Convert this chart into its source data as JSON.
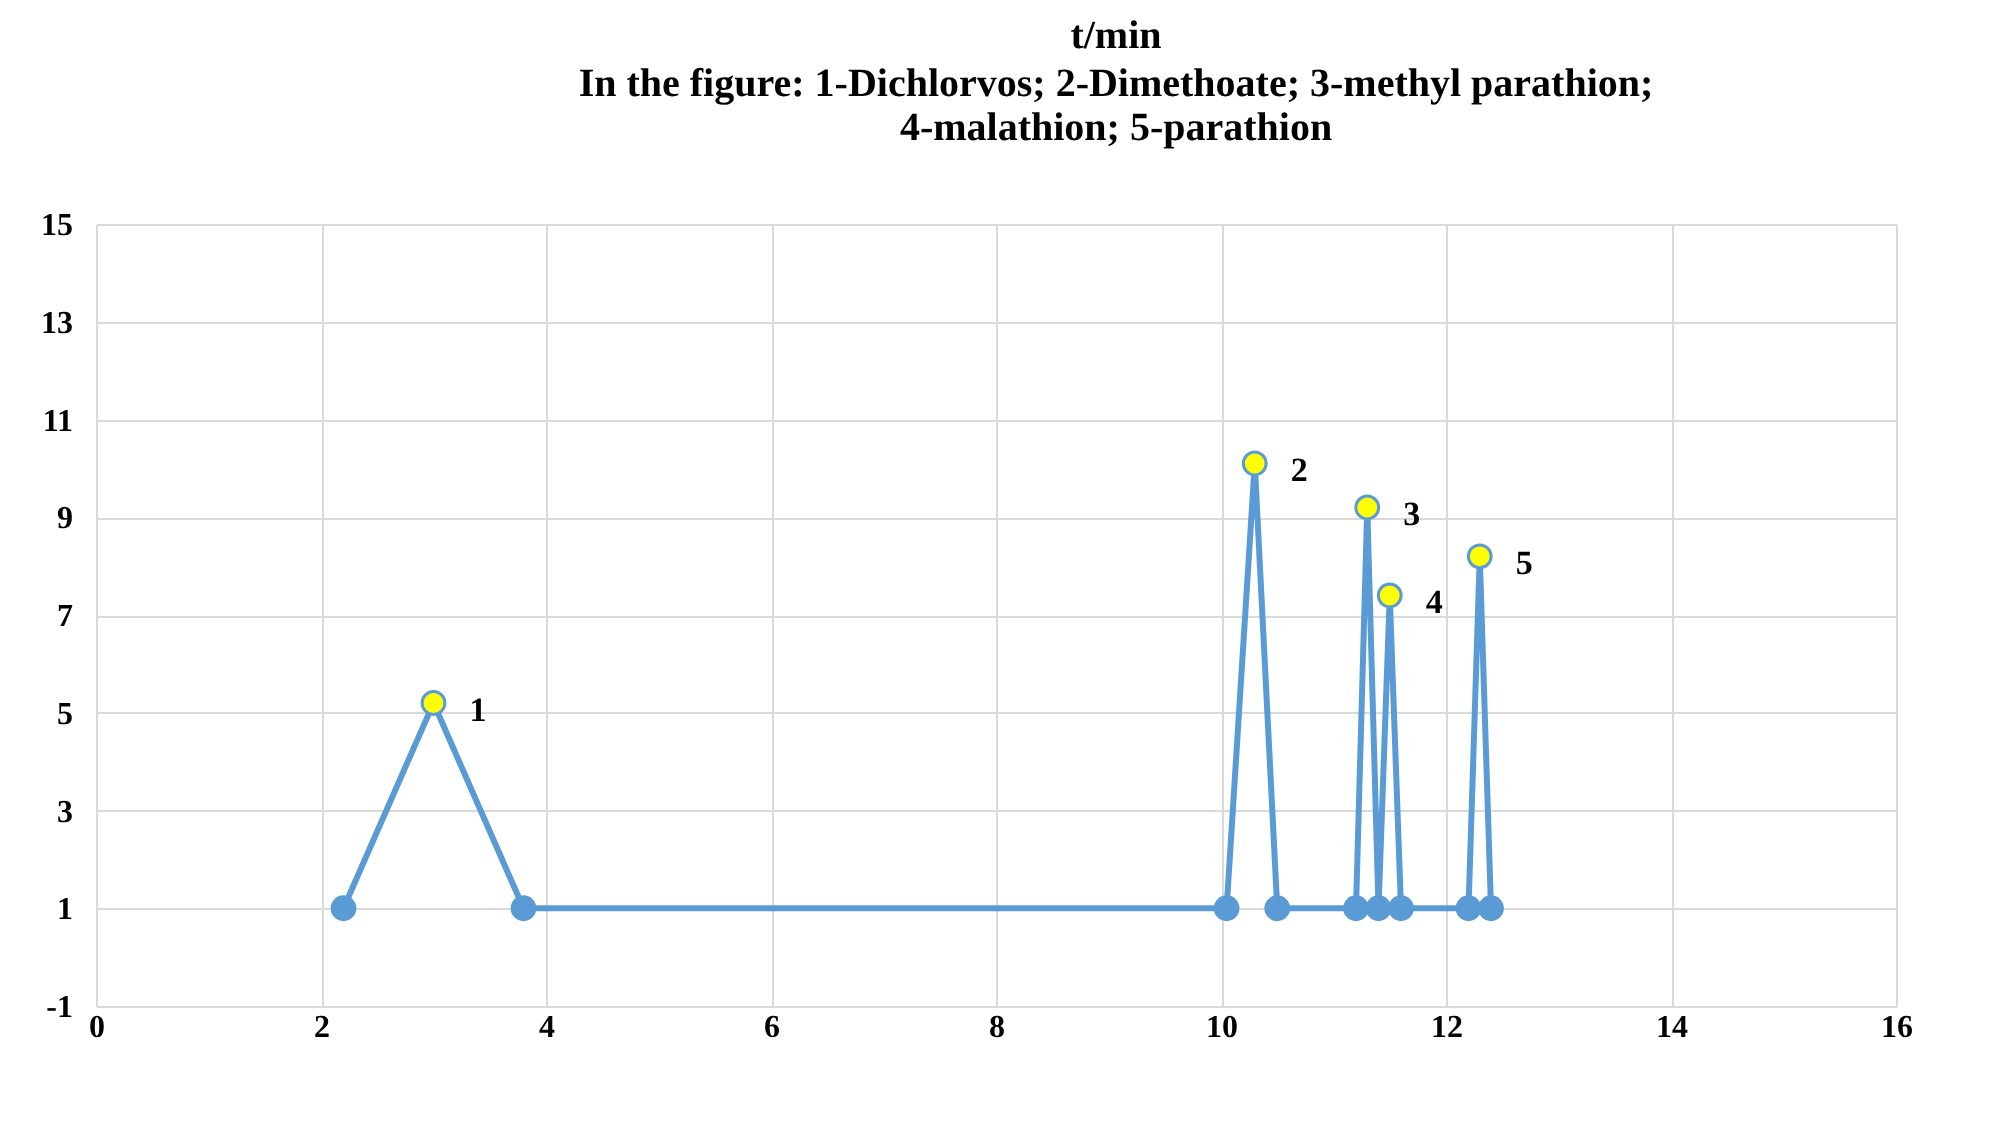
{
  "chart_data": {
    "type": "line",
    "title": "t/min",
    "subtitle": "In the figure: 1-Dichlorvos; 2-Dimethoate; 3-methyl parathion; 4-malathion; 5-parathion",
    "series": [
      {
        "color": "#5b9bd5",
        "x": [
          2.2,
          3.0,
          3.8,
          10.05,
          10.3,
          10.5,
          11.2,
          11.3,
          11.4,
          11.5,
          11.6,
          12.2,
          12.3,
          12.4
        ],
        "values": [
          1,
          5.2,
          1,
          1,
          10.1,
          1,
          1,
          9.2,
          1,
          7.4,
          1,
          1,
          8.2,
          1
        ],
        "colors": [
          "#5b9bd5",
          "#ffff00",
          "#5b9bd5",
          "#5b9bd5",
          "#ffff00",
          "#5b9bd5",
          "#5b9bd5",
          "#ffff00",
          "#5b9bd5",
          "#ffff00",
          "#5b9bd5",
          "#5b9bd5",
          "#ffff00",
          "#5b9bd5"
        ]
      }
    ],
    "annotations": [
      {
        "text": "1",
        "x": 3.0,
        "y": 5.2
      },
      {
        "text": "2",
        "x": 10.3,
        "y": 10.1
      },
      {
        "text": "3",
        "x": 11.3,
        "y": 9.2
      },
      {
        "text": "4",
        "x": 11.5,
        "y": 7.4
      },
      {
        "text": "5",
        "x": 12.3,
        "y": 8.2
      }
    ],
    "xlim": [
      0,
      16
    ],
    "xticks": [
      0,
      2,
      4,
      6,
      8,
      10,
      12,
      14,
      16
    ],
    "ylim": [
      -1,
      15
    ],
    "yticks": [
      -1,
      1,
      3,
      5,
      7,
      9,
      11,
      13,
      15
    ],
    "grid": true,
    "marker": "circle",
    "line_style": "solid"
  }
}
